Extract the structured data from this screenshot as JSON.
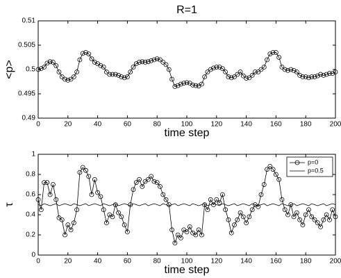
{
  "chart_data": [
    {
      "type": "line",
      "title": "R=1",
      "xlabel": "time step",
      "ylabel": "<p>",
      "x": [
        0,
        2,
        4,
        6,
        8,
        10,
        12,
        14,
        16,
        18,
        20,
        22,
        24,
        26,
        28,
        30,
        32,
        34,
        36,
        38,
        40,
        42,
        44,
        46,
        48,
        50,
        52,
        54,
        56,
        58,
        60,
        62,
        64,
        66,
        68,
        70,
        72,
        74,
        76,
        78,
        80,
        82,
        84,
        86,
        88,
        90,
        92,
        94,
        96,
        98,
        100,
        102,
        104,
        106,
        108,
        110,
        112,
        114,
        116,
        118,
        120,
        122,
        124,
        126,
        128,
        130,
        132,
        134,
        136,
        138,
        140,
        142,
        144,
        146,
        148,
        150,
        152,
        154,
        156,
        158,
        160,
        162,
        164,
        166,
        168,
        170,
        172,
        174,
        176,
        178,
        180,
        182,
        184,
        186,
        188,
        190,
        192,
        194,
        196,
        198,
        200
      ],
      "series": [
        {
          "name": null,
          "color": "#000000",
          "marker": "o",
          "values": [
            0.5,
            0.5002,
            0.5005,
            0.5013,
            0.5016,
            0.5015,
            0.5008,
            0.4995,
            0.4985,
            0.498,
            0.4978,
            0.498,
            0.4985,
            0.4995,
            0.502,
            0.5033,
            0.5035,
            0.5032,
            0.5022,
            0.5015,
            0.5012,
            0.5008,
            0.5005,
            0.4995,
            0.499,
            0.499,
            0.499,
            0.4988,
            0.4985,
            0.4983,
            0.4985,
            0.4995,
            0.5005,
            0.5012,
            0.5015,
            0.5016,
            0.5015,
            0.5016,
            0.5018,
            0.502,
            0.5022,
            0.502,
            0.5015,
            0.501,
            0.5,
            0.498,
            0.4965,
            0.4967,
            0.497,
            0.4972,
            0.4973,
            0.4972,
            0.4968,
            0.4967,
            0.4966,
            0.497,
            0.4985,
            0.4995,
            0.5,
            0.5003,
            0.5005,
            0.5005,
            0.5002,
            0.4995,
            0.4985,
            0.4983,
            0.4985,
            0.499,
            0.4995,
            0.4987,
            0.4982,
            0.4983,
            0.4988,
            0.4995,
            0.4995,
            0.5,
            0.5005,
            0.502,
            0.5032,
            0.5035,
            0.5035,
            0.5025,
            0.5005,
            0.5,
            0.4998,
            0.5,
            0.4998,
            0.4995,
            0.4988,
            0.4985,
            0.4985,
            0.4983,
            0.4985,
            0.4985,
            0.4987,
            0.499,
            0.4988,
            0.499,
            0.4992,
            0.4992,
            0.4995
          ]
        }
      ],
      "xlim": [
        0,
        200
      ],
      "xticks": [
        0,
        20,
        40,
        60,
        80,
        100,
        120,
        140,
        160,
        180,
        200
      ],
      "ylim": [
        0.49,
        0.51
      ],
      "yticks": [
        0.49,
        0.495,
        0.5,
        0.505,
        0.51
      ],
      "grid": false
    },
    {
      "type": "line",
      "xlabel": "time step",
      "ylabel": "τ",
      "x": [
        0,
        2,
        4,
        6,
        8,
        10,
        12,
        14,
        16,
        18,
        20,
        22,
        24,
        26,
        28,
        30,
        32,
        34,
        36,
        38,
        40,
        42,
        44,
        46,
        48,
        50,
        52,
        54,
        56,
        58,
        60,
        62,
        64,
        66,
        68,
        70,
        72,
        74,
        76,
        78,
        80,
        82,
        84,
        86,
        88,
        90,
        92,
        94,
        96,
        98,
        100,
        102,
        104,
        106,
        108,
        110,
        112,
        114,
        116,
        118,
        120,
        122,
        124,
        126,
        128,
        130,
        132,
        134,
        136,
        138,
        140,
        142,
        144,
        146,
        148,
        150,
        152,
        154,
        156,
        158,
        160,
        162,
        164,
        166,
        168,
        170,
        172,
        174,
        176,
        178,
        180,
        182,
        184,
        186,
        188,
        190,
        192,
        194,
        196,
        198,
        200
      ],
      "series": [
        {
          "name": "p=0",
          "color": "#000000",
          "marker": "o",
          "values": [
            0.55,
            0.45,
            0.72,
            0.72,
            0.6,
            0.7,
            0.55,
            0.37,
            0.35,
            0.2,
            0.3,
            0.25,
            0.32,
            0.45,
            0.82,
            0.87,
            0.84,
            0.78,
            0.6,
            0.75,
            0.62,
            0.58,
            0.45,
            0.32,
            0.4,
            0.38,
            0.5,
            0.42,
            0.38,
            0.3,
            0.23,
            0.5,
            0.65,
            0.72,
            0.75,
            0.68,
            0.73,
            0.75,
            0.78,
            0.73,
            0.72,
            0.68,
            0.6,
            0.55,
            0.5,
            0.25,
            0.12,
            0.2,
            0.17,
            0.25,
            0.23,
            0.28,
            0.22,
            0.2,
            0.25,
            0.2,
            0.5,
            0.45,
            0.55,
            0.5,
            0.55,
            0.52,
            0.6,
            0.45,
            0.35,
            0.22,
            0.3,
            0.35,
            0.42,
            0.38,
            0.32,
            0.38,
            0.45,
            0.5,
            0.48,
            0.6,
            0.7,
            0.85,
            0.88,
            0.85,
            0.8,
            0.75,
            0.55,
            0.45,
            0.4,
            0.5,
            0.38,
            0.42,
            0.35,
            0.3,
            0.4,
            0.45,
            0.38,
            0.35,
            0.32,
            0.28,
            0.35,
            0.4,
            0.35,
            0.45,
            0.38
          ]
        },
        {
          "name": "p=0.5",
          "color": "#000000",
          "marker": "none",
          "values": [
            0.5,
            0.49,
            0.51,
            0.5,
            0.49,
            0.5,
            0.51,
            0.49,
            0.5,
            0.51,
            0.5,
            0.49,
            0.51,
            0.5,
            0.49,
            0.5,
            0.51,
            0.49,
            0.5,
            0.51,
            0.5,
            0.49,
            0.51,
            0.5,
            0.49,
            0.5,
            0.51,
            0.49,
            0.5,
            0.51,
            0.5,
            0.49,
            0.51,
            0.5,
            0.49,
            0.5,
            0.51,
            0.49,
            0.5,
            0.51,
            0.5,
            0.49,
            0.51,
            0.5,
            0.49,
            0.5,
            0.51,
            0.49,
            0.5,
            0.51,
            0.5,
            0.49,
            0.51,
            0.5,
            0.49,
            0.5,
            0.51,
            0.49,
            0.5,
            0.51,
            0.5,
            0.49,
            0.51,
            0.5,
            0.49,
            0.5,
            0.51,
            0.49,
            0.5,
            0.51,
            0.5,
            0.49,
            0.51,
            0.5,
            0.49,
            0.5,
            0.51,
            0.49,
            0.5,
            0.51,
            0.5,
            0.49,
            0.51,
            0.5,
            0.49,
            0.5,
            0.51,
            0.49,
            0.5,
            0.51,
            0.5,
            0.49,
            0.51,
            0.5,
            0.49,
            0.5,
            0.51,
            0.49,
            0.5,
            0.51,
            0.5
          ]
        }
      ],
      "xlim": [
        0,
        200
      ],
      "xticks": [
        0,
        20,
        40,
        60,
        80,
        100,
        120,
        140,
        160,
        180,
        200
      ],
      "ylim": [
        0,
        1
      ],
      "yticks": [
        0,
        0.2,
        0.4,
        0.6,
        0.8,
        1
      ],
      "grid": false,
      "legend": "upper right"
    }
  ]
}
